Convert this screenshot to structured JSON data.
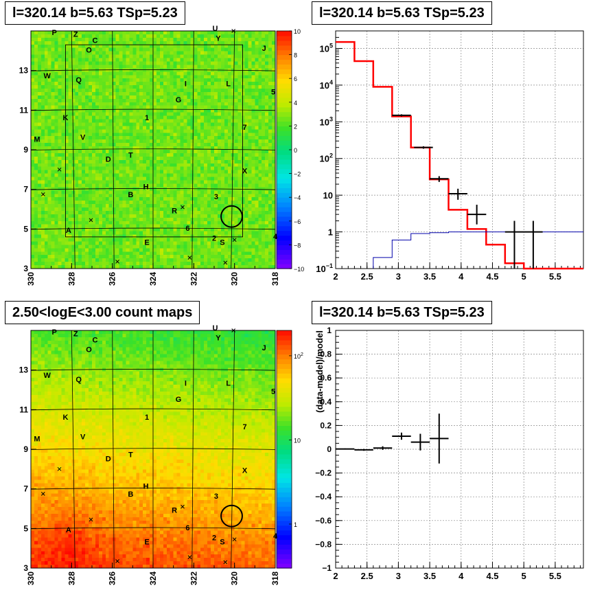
{
  "panels": {
    "tl_title": "l=320.14 b=5.63 TSp=5.23",
    "tr_title": "l=320.14 b=5.63 TSp=5.23",
    "bl_title": "2.50<logE<3.00 count maps",
    "br_title": "l=320.14 b=5.63 TSp=5.23"
  },
  "chart_data": [
    {
      "type": "heatmap",
      "title": "l=320.14 b=5.63 TSp=5.23",
      "x_ticks": [
        "330",
        "328",
        "326",
        "324",
        "322",
        "320",
        "318"
      ],
      "y_ticks": [
        "3",
        "5",
        "7",
        "9",
        "11",
        "13"
      ],
      "xlim": [
        330,
        318
      ],
      "ylim": [
        3,
        15
      ],
      "grid": true,
      "colorbar": {
        "ticks": [
          "10",
          "8",
          "6",
          "4",
          "2",
          "0",
          "−2",
          "−4",
          "−6",
          "−8",
          "−10"
        ],
        "range": [
          -10,
          10
        ],
        "scale": "linear"
      },
      "source_labels": [
        {
          "text": "P",
          "l": 328.85,
          "b": 14.8
        },
        {
          "text": "Z",
          "l": 327.8,
          "b": 14.7
        },
        {
          "text": "C",
          "l": 326.85,
          "b": 14.4
        },
        {
          "text": "O",
          "l": 327.15,
          "b": 13.9
        },
        {
          "text": "U",
          "l": 320.95,
          "b": 15.0
        },
        {
          "text": "Y",
          "l": 320.8,
          "b": 14.5
        },
        {
          "text": "J",
          "l": 318.55,
          "b": 14.0
        },
        {
          "text": "W",
          "l": 329.2,
          "b": 12.6
        },
        {
          "text": "Q",
          "l": 327.65,
          "b": 12.4
        },
        {
          "text": "I",
          "l": 322.4,
          "b": 12.2
        },
        {
          "text": "L",
          "l": 320.3,
          "b": 12.2
        },
        {
          "text": "5",
          "l": 318.1,
          "b": 11.8
        },
        {
          "text": "G",
          "l": 322.75,
          "b": 11.4
        },
        {
          "text": "K",
          "l": 328.3,
          "b": 10.5
        },
        {
          "text": "1",
          "l": 324.3,
          "b": 10.5
        },
        {
          "text": "7",
          "l": 319.5,
          "b": 10.0
        },
        {
          "text": "M",
          "l": 329.7,
          "b": 9.4
        },
        {
          "text": "V",
          "l": 327.45,
          "b": 9.5
        },
        {
          "text": "D",
          "l": 326.2,
          "b": 8.4
        },
        {
          "text": "T",
          "l": 325.1,
          "b": 8.6
        },
        {
          "text": "X",
          "l": 319.5,
          "b": 7.8
        },
        {
          "text": "H",
          "l": 324.35,
          "b": 7.0
        },
        {
          "text": "B",
          "l": 325.1,
          "b": 6.6
        },
        {
          "text": "3",
          "l": 320.9,
          "b": 6.5
        },
        {
          "text": "R",
          "l": 322.95,
          "b": 5.8
        },
        {
          "text": "A",
          "l": 328.15,
          "b": 4.8
        },
        {
          "text": "6",
          "l": 322.3,
          "b": 4.9
        },
        {
          "text": "2",
          "l": 321.0,
          "b": 4.4
        },
        {
          "text": "4",
          "l": 318.0,
          "b": 4.5
        },
        {
          "text": "E",
          "l": 324.3,
          "b": 4.2
        },
        {
          "text": "S",
          "l": 320.6,
          "b": 4.2
        }
      ],
      "cross_markers": [
        {
          "l": 320.05,
          "b": 15.0
        },
        {
          "l": 328.6,
          "b": 8.0
        },
        {
          "l": 329.4,
          "b": 6.75
        },
        {
          "l": 322.55,
          "b": 6.1
        },
        {
          "l": 327.05,
          "b": 5.45
        },
        {
          "l": 320.0,
          "b": 4.45
        },
        {
          "l": 325.75,
          "b": 3.35
        },
        {
          "l": 322.2,
          "b": 3.55
        },
        {
          "l": 320.45,
          "b": 3.3
        }
      ],
      "circle": {
        "l": 320.14,
        "b": 5.63,
        "r": 0.52
      }
    },
    {
      "type": "line",
      "title": "l=320.14 b=5.63 TSp=5.23",
      "x_ticks": [
        "2",
        "2.5",
        "3",
        "3.5",
        "4",
        "4.5",
        "5",
        "5.5"
      ],
      "y_ticks": [
        "10^-1",
        "1",
        "10",
        "10^2",
        "10^3",
        "10^4",
        "10^5"
      ],
      "xlim": [
        2.0,
        5.95
      ],
      "ylim": [
        0.1,
        300000
      ],
      "yscale": "log",
      "grid": true,
      "bin_edges": [
        2.0,
        2.3,
        2.6,
        2.9,
        3.2,
        3.5,
        3.8,
        4.1,
        4.4,
        4.7,
        5.0,
        5.3,
        5.95
      ],
      "series": [
        {
          "color": "#ff0000",
          "step_values": [
            150000,
            45000,
            9000,
            1400,
            200,
            27,
            4,
            1.2,
            0.45,
            0.14,
            0.1,
            0.1
          ]
        },
        {
          "color": "#0000aa",
          "step_values": [
            null,
            null,
            0.2,
            0.6,
            0.9,
            0.95,
            1.0,
            1.0,
            1.0,
            1.0,
            1.0,
            1.0
          ]
        }
      ],
      "data_points": [
        {
          "x": 3.05,
          "y": 1500,
          "xerr": 0.15,
          "ylo": 1400,
          "yhi": 1600
        },
        {
          "x": 3.4,
          "y": 200,
          "xerr": 0.15,
          "ylo": 185,
          "yhi": 215
        },
        {
          "x": 3.65,
          "y": 28,
          "xerr": 0.15,
          "ylo": 23,
          "yhi": 33
        },
        {
          "x": 3.95,
          "y": 11,
          "xerr": 0.15,
          "ylo": 7.5,
          "yhi": 15
        },
        {
          "x": 4.25,
          "y": 3.0,
          "xerr": 0.15,
          "ylo": 1.6,
          "yhi": 5.5
        },
        {
          "x": 4.85,
          "y": 1.0,
          "xerr": 0.15,
          "ylo": 0.1,
          "yhi": 2.0
        },
        {
          "x": 5.15,
          "y": 1.0,
          "xerr": 0.15,
          "ylo": 0.1,
          "yhi": 2.0
        }
      ]
    },
    {
      "type": "heatmap",
      "title": "2.50<logE<3.00 count maps",
      "x_ticks": [
        "330",
        "328",
        "326",
        "324",
        "322",
        "320",
        "318"
      ],
      "y_ticks": [
        "3",
        "5",
        "7",
        "9",
        "11",
        "13"
      ],
      "xlim": [
        330,
        318
      ],
      "ylim": [
        3,
        15
      ],
      "grid": true,
      "colorbar": {
        "ticks": [
          "10^2",
          "10",
          "1"
        ],
        "range": [
          0.3,
          200
        ],
        "scale": "log"
      }
    },
    {
      "type": "scatter",
      "title": "l=320.14 b=5.63 TSp=5.23",
      "ylabel": "(data-model)/model",
      "x_ticks": [
        "2",
        "2.5",
        "3",
        "3.5",
        "4",
        "4.5",
        "5",
        "5.5"
      ],
      "y_ticks": [
        "−1",
        "−0.8",
        "−0.6",
        "−0.4",
        "−0.2",
        "0",
        "0.2",
        "0.4",
        "0.6",
        "0.8",
        "1"
      ],
      "xlim": [
        2.0,
        5.95
      ],
      "ylim": [
        -1,
        1
      ],
      "grid": true,
      "data_points": [
        {
          "x": 2.15,
          "y": 0.002,
          "xerr": 0.15,
          "yerr": 0.005
        },
        {
          "x": 2.45,
          "y": -0.005,
          "xerr": 0.15,
          "yerr": 0.008
        },
        {
          "x": 2.75,
          "y": 0.01,
          "xerr": 0.15,
          "yerr": 0.015
        },
        {
          "x": 3.05,
          "y": 0.11,
          "xerr": 0.15,
          "yerr": 0.03
        },
        {
          "x": 3.35,
          "y": 0.06,
          "xerr": 0.15,
          "yerr": 0.07
        },
        {
          "x": 3.65,
          "y": 0.09,
          "xerr": 0.15,
          "yerr": 0.21
        }
      ]
    }
  ]
}
